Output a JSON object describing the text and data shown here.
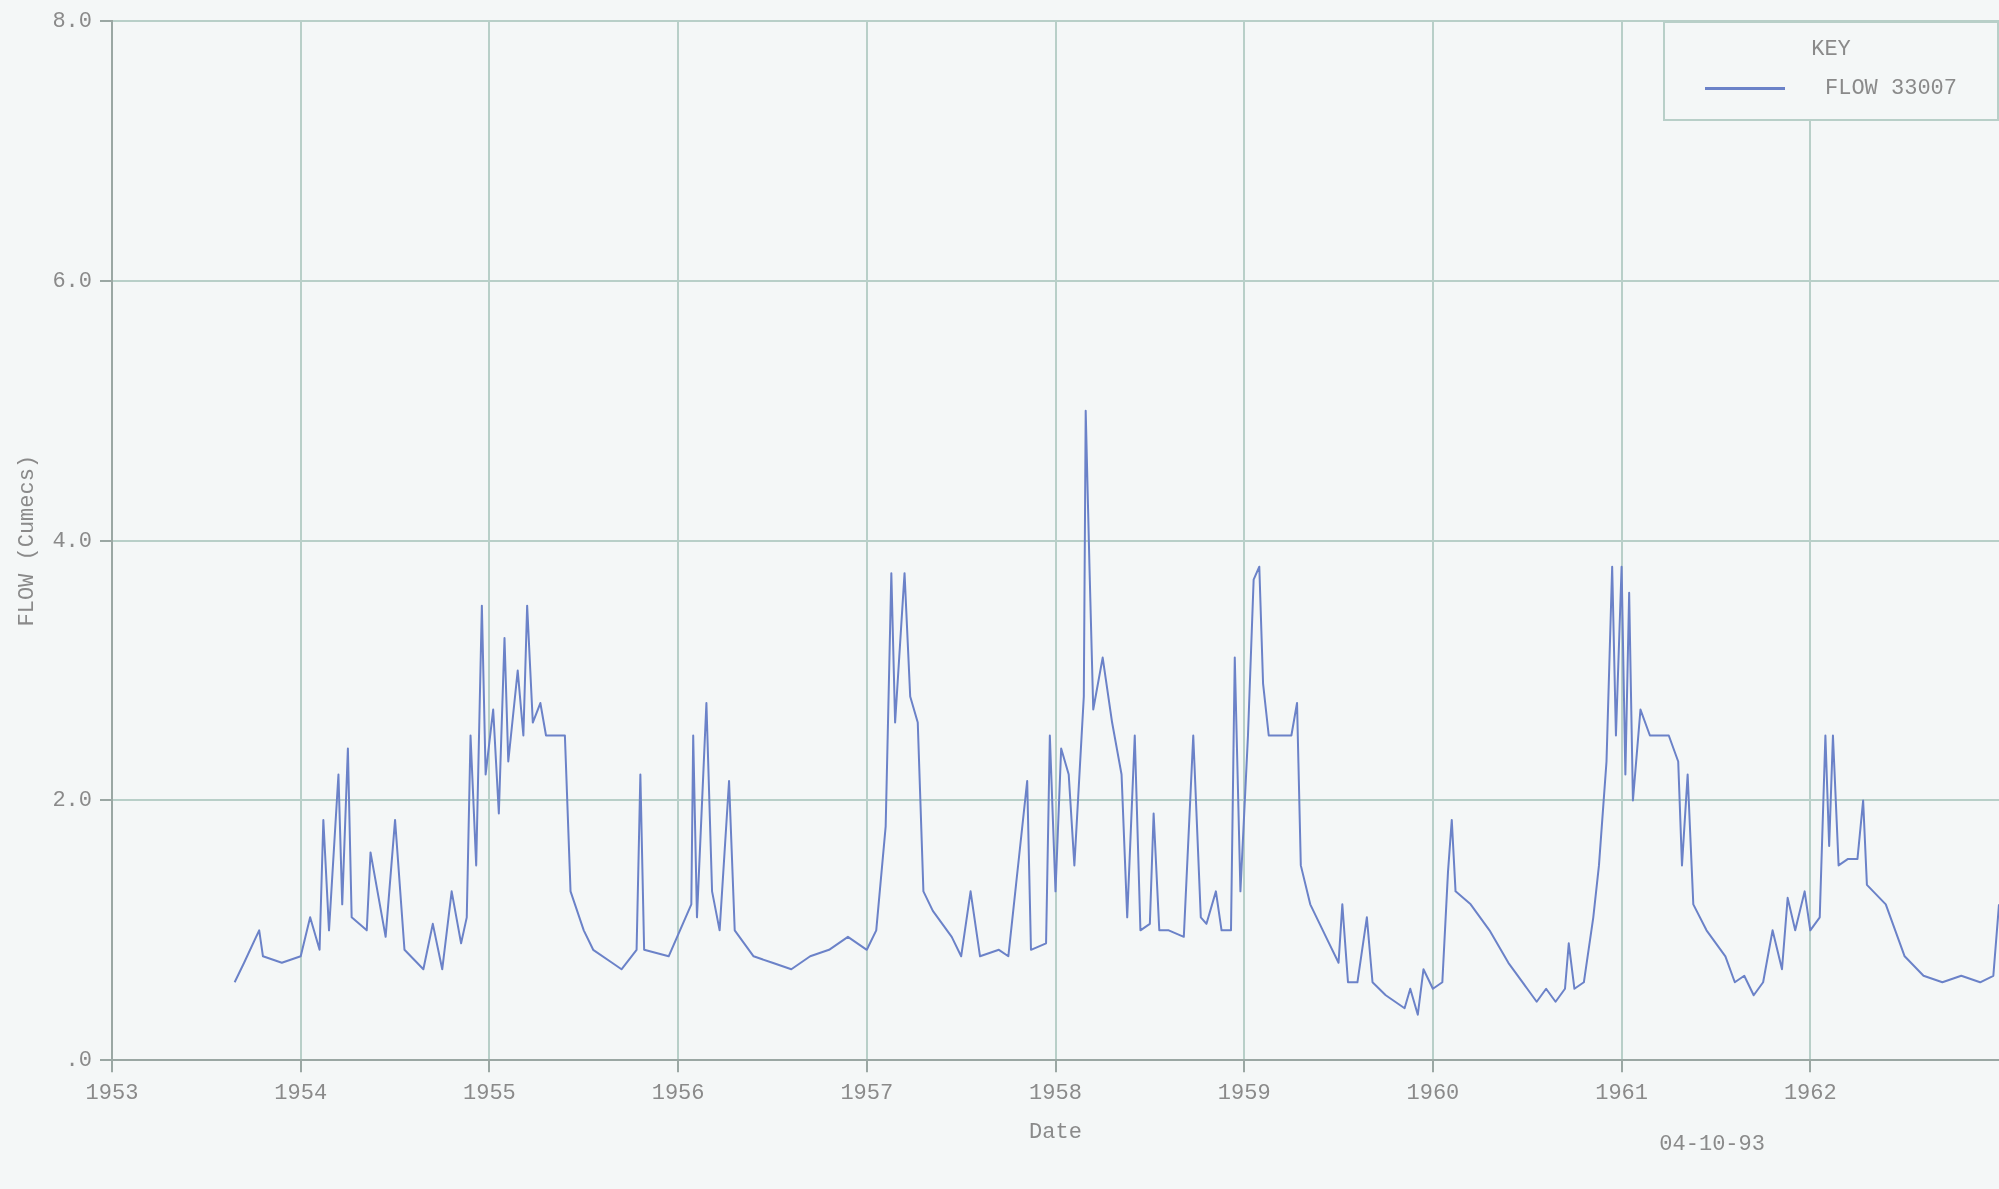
{
  "chart_data": {
    "type": "line",
    "xlabel": "Date",
    "ylabel": "FLOW (Cumecs)",
    "legend_title": "KEY",
    "legend": "top right",
    "grid": true,
    "marker": "none",
    "line_style": "solid",
    "xlim": [
      1953,
      1963
    ],
    "xticks": [
      1953,
      1954,
      1955,
      1956,
      1957,
      1958,
      1959,
      1960,
      1961,
      1962
    ],
    "ylim": [
      0,
      8
    ],
    "yticks": [
      {
        "value": 0,
        "label": ".0"
      },
      {
        "value": 2,
        "label": "2.0"
      },
      {
        "value": 4,
        "label": "4.0"
      },
      {
        "value": 6,
        "label": "6.0"
      },
      {
        "value": 8,
        "label": "8.0"
      }
    ],
    "annotations": [
      "04-10-93"
    ],
    "series": [
      {
        "name": "FLOW 33007",
        "color": "#6b82c8",
        "x": [
          1953.65,
          1953.7,
          1953.78,
          1953.8,
          1953.9,
          1954.0,
          1954.05,
          1954.1,
          1954.12,
          1954.15,
          1954.2,
          1954.22,
          1954.25,
          1954.27,
          1954.35,
          1954.37,
          1954.45,
          1954.5,
          1954.55,
          1954.65,
          1954.7,
          1954.75,
          1954.8,
          1954.85,
          1954.88,
          1954.9,
          1954.93,
          1954.96,
          1954.98,
          1955.02,
          1955.05,
          1955.08,
          1955.1,
          1955.15,
          1955.18,
          1955.2,
          1955.23,
          1955.27,
          1955.3,
          1955.4,
          1955.43,
          1955.5,
          1955.55,
          1955.65,
          1955.7,
          1955.78,
          1955.8,
          1955.82,
          1955.95,
          1956.07,
          1956.08,
          1956.1,
          1956.15,
          1956.18,
          1956.22,
          1956.27,
          1956.3,
          1956.4,
          1956.5,
          1956.6,
          1956.7,
          1956.8,
          1956.9,
          1957.0,
          1957.05,
          1957.1,
          1957.13,
          1957.15,
          1957.2,
          1957.23,
          1957.27,
          1957.3,
          1957.35,
          1957.45,
          1957.5,
          1957.55,
          1957.6,
          1957.7,
          1957.75,
          1957.85,
          1957.87,
          1957.95,
          1957.97,
          1958.0,
          1958.03,
          1958.07,
          1958.1,
          1958.15,
          1958.16,
          1958.18,
          1958.2,
          1958.25,
          1958.3,
          1958.35,
          1958.38,
          1958.42,
          1958.45,
          1958.5,
          1958.52,
          1958.55,
          1958.6,
          1958.68,
          1958.73,
          1958.77,
          1958.8,
          1958.85,
          1958.88,
          1958.93,
          1958.95,
          1958.98,
          1959.02,
          1959.05,
          1959.08,
          1959.1,
          1959.13,
          1959.25,
          1959.28,
          1959.3,
          1959.35,
          1959.45,
          1959.5,
          1959.52,
          1959.55,
          1959.6,
          1959.65,
          1959.68,
          1959.75,
          1959.85,
          1959.88,
          1959.92,
          1959.95,
          1960.0,
          1960.05,
          1960.08,
          1960.1,
          1960.12,
          1960.2,
          1960.3,
          1960.4,
          1960.5,
          1960.55,
          1960.6,
          1960.65,
          1960.7,
          1960.72,
          1960.75,
          1960.8,
          1960.85,
          1960.88,
          1960.92,
          1960.95,
          1960.97,
          1961.0,
          1961.02,
          1961.04,
          1961.06,
          1961.1,
          1961.15,
          1961.25,
          1961.3,
          1961.32,
          1961.35,
          1961.38,
          1961.45,
          1961.55,
          1961.6,
          1961.65,
          1961.7,
          1961.75,
          1961.8,
          1961.85,
          1961.88,
          1961.92,
          1961.97,
          1962.0,
          1962.05,
          1962.08,
          1962.1,
          1962.12,
          1962.15,
          1962.2,
          1962.25,
          1962.28,
          1962.3,
          1962.4,
          1962.5,
          1962.6,
          1962.7,
          1962.8,
          1962.9,
          1962.97,
          1963.0
        ],
        "values": [
          0.6,
          0.75,
          1.0,
          0.8,
          0.75,
          0.8,
          1.1,
          0.85,
          1.85,
          1.0,
          2.2,
          1.2,
          2.4,
          1.1,
          1.0,
          1.6,
          0.95,
          1.85,
          0.85,
          0.7,
          1.05,
          0.7,
          1.3,
          0.9,
          1.1,
          2.5,
          1.5,
          3.5,
          2.2,
          2.7,
          1.9,
          3.25,
          2.3,
          3.0,
          2.5,
          3.5,
          2.6,
          2.75,
          2.5,
          2.5,
          1.3,
          1.0,
          0.85,
          0.75,
          0.7,
          0.85,
          2.2,
          0.85,
          0.8,
          1.2,
          2.5,
          1.1,
          2.75,
          1.3,
          1.0,
          2.15,
          1.0,
          0.8,
          0.75,
          0.7,
          0.8,
          0.85,
          0.95,
          0.85,
          1.0,
          1.8,
          3.75,
          2.6,
          3.75,
          2.8,
          2.6,
          1.3,
          1.15,
          0.95,
          0.8,
          1.3,
          0.8,
          0.85,
          0.8,
          2.15,
          0.85,
          0.9,
          2.5,
          1.3,
          2.4,
          2.2,
          1.5,
          2.8,
          5.0,
          3.8,
          2.7,
          3.1,
          2.6,
          2.2,
          1.1,
          2.5,
          1.0,
          1.05,
          1.9,
          1.0,
          1.0,
          0.95,
          2.5,
          1.1,
          1.05,
          1.3,
          1.0,
          1.0,
          3.1,
          1.3,
          2.5,
          3.7,
          3.8,
          2.9,
          2.5,
          2.5,
          2.75,
          1.5,
          1.2,
          0.9,
          0.75,
          1.2,
          0.6,
          0.6,
          1.1,
          0.6,
          0.5,
          0.4,
          0.55,
          0.35,
          0.7,
          0.55,
          0.6,
          1.45,
          1.85,
          1.3,
          1.2,
          1.0,
          0.75,
          0.55,
          0.45,
          0.55,
          0.45,
          0.55,
          0.9,
          0.55,
          0.6,
          1.1,
          1.5,
          2.3,
          3.8,
          2.5,
          3.8,
          2.2,
          3.6,
          2.0,
          2.7,
          2.5,
          2.5,
          2.3,
          1.5,
          2.2,
          1.2,
          1.0,
          0.8,
          0.6,
          0.65,
          0.5,
          0.6,
          1.0,
          0.7,
          1.25,
          1.0,
          1.3,
          1.0,
          1.1,
          2.5,
          1.65,
          2.5,
          1.5,
          1.55,
          1.55,
          2.0,
          1.35,
          1.2,
          0.8,
          0.65,
          0.6,
          0.65,
          0.6,
          0.65,
          1.2
        ]
      }
    ]
  }
}
